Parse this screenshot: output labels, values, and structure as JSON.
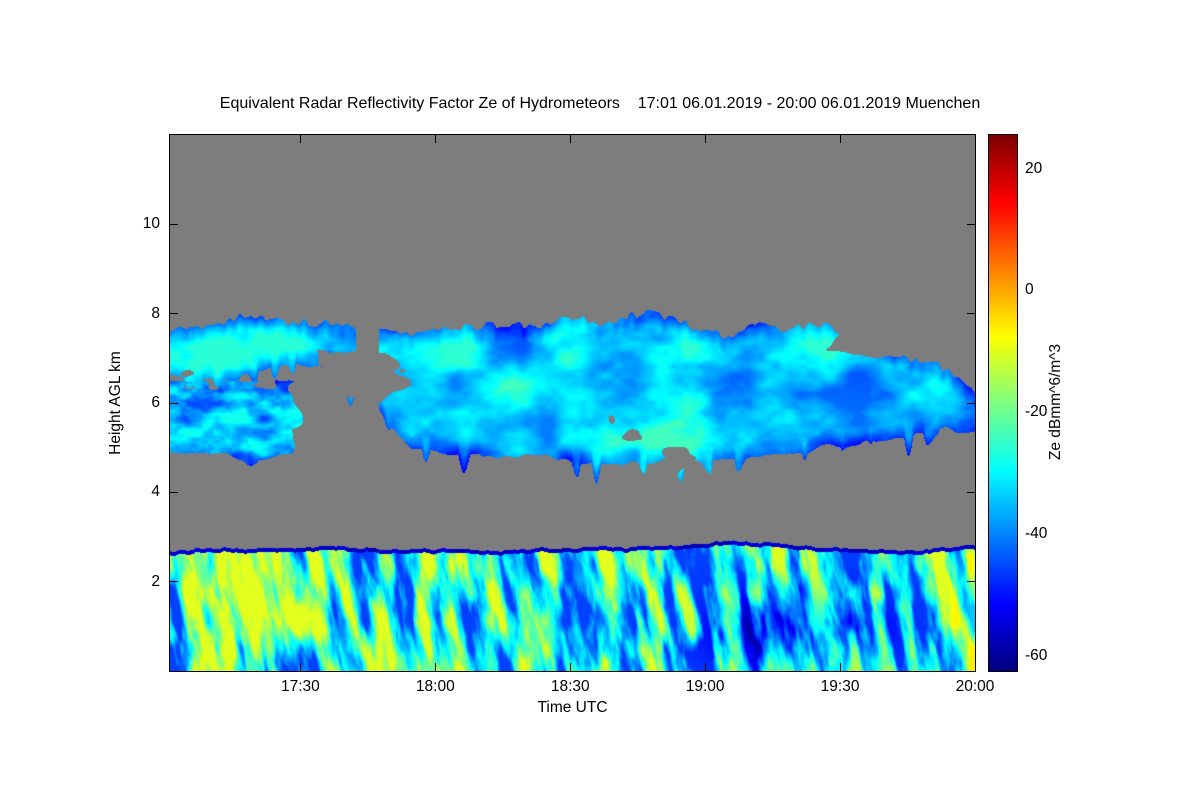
{
  "chart_data": {
    "type": "heatmap",
    "title": "Equivalent Radar Reflectivity Factor Ze of Hydrometeors    17:01 06.01.2019 - 20:00 06.01.2019 Muenchen",
    "xlabel": "Time UTC",
    "ylabel": "Height AGL km",
    "grid": false,
    "background_nodata": "#7d7d7d",
    "x_axis": {
      "start": "17:01",
      "end": "20:00",
      "start_minute": 1021,
      "end_minute": 1200,
      "ticks": [
        {
          "label": "17:30",
          "minute": 1050
        },
        {
          "label": "18:00",
          "minute": 1080
        },
        {
          "label": "18:30",
          "minute": 1110
        },
        {
          "label": "19:00",
          "minute": 1140
        },
        {
          "label": "19:30",
          "minute": 1170
        },
        {
          "label": "20:00",
          "minute": 1200
        }
      ]
    },
    "y_axis": {
      "min_km": 0,
      "max_km": 12,
      "ticks": [
        2,
        4,
        6,
        8,
        10
      ]
    },
    "colorbar": {
      "label": "Ze dBmm^6/m^3",
      "ticks": [
        20,
        0,
        -20,
        -40,
        -60
      ],
      "vmin": -62.5,
      "vmax": 25.5,
      "colormap": "jet",
      "nodata_color": "#7d7d7d"
    },
    "layers": {
      "boundary_layer": {
        "description": "Continuous boundary-layer echo from ground up to ~2.8 km across whole period; vertical fall streaks of -20 to -10 dB (green/yellow) between weaker -45 to -35 dB (blue) gaps; dark low-reflectivity pocket near 19:20 below 2 km; bright yellow column at the 20:00 edge; thin dark navy rim along layer top",
        "top_km": [
          2.7,
          2.75,
          2.8,
          2.7,
          2.7,
          2.75,
          2.8,
          2.9,
          2.8,
          2.7,
          2.8
        ],
        "ze_min": -46,
        "ze_max": -10,
        "dark_pocket": {
          "t": 0.78,
          "h_km": 0.9,
          "t_sigma": 0.09,
          "h_sigma": 0.85,
          "depth_db": 20
        },
        "bright_right_edge_db": 12,
        "top_rim_ze": -56
      },
      "mid_cloud_left": {
        "description": "Detached cloud patch 17:01-17:35 between ~4.85 and 6.5 km, Ze -45 to -28 dB, cyan streaks in blue",
        "t_end": 0.18,
        "bottom_km": 4.85,
        "top_km": 6.5,
        "ze_min": -45,
        "ze_max": -28
      },
      "upper_cloud": {
        "description": "Cloud band spanning 17:01-20:00: thin 6.6-7.9 km layer before ~17:45 with a short gap, deepening to 4.6-8.0 km after 18:00, thinning and descending to ~5.4-6.4 km by 20:00; Ze -45 (edges, dark blue) to -26 dB (cyan core near 18:30-19:10 at 5-6 km)",
        "top_km": [
          7.5,
          7.9,
          7.6,
          7.5,
          7.7,
          7.8,
          8.0,
          7.6,
          7.8,
          7.2,
          6.4
        ],
        "bottom_km": [
          6.7,
          6.6,
          6.9,
          5.0,
          4.9,
          4.7,
          4.6,
          4.7,
          4.9,
          5.2,
          5.4
        ],
        "gap_t": 0.245,
        "gap_halfwidth": 0.013,
        "ze_min": -45,
        "ze_max": -26,
        "bright_core": {
          "t": 0.62,
          "h_km": 5.6,
          "t_sigma": 0.28,
          "h_sigma": 1.0,
          "boost_db": 6
        }
      }
    }
  }
}
